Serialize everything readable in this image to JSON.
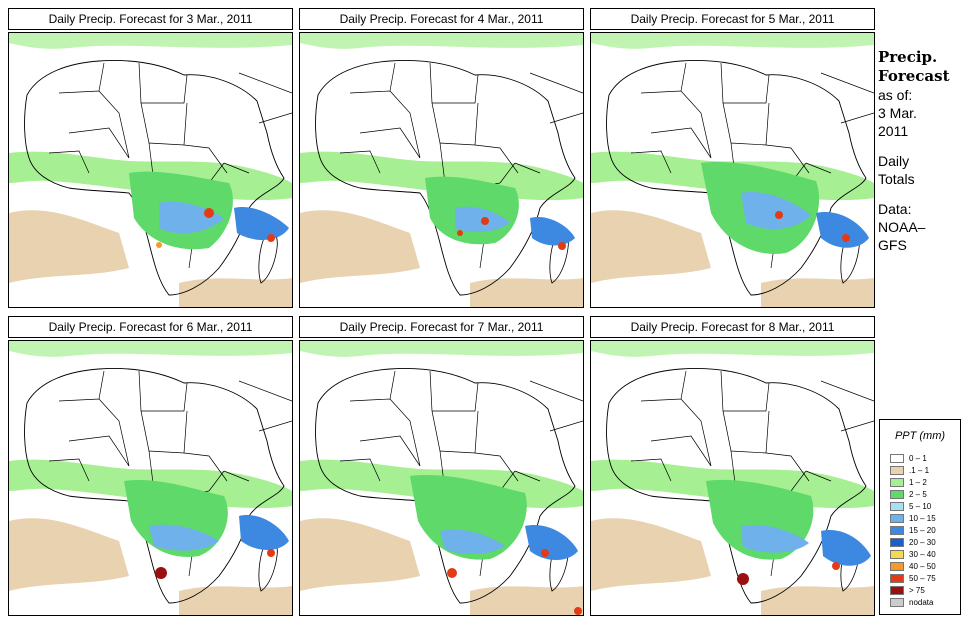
{
  "panels": [
    {
      "title": "Daily Precip. Forecast for  3 Mar., 2011"
    },
    {
      "title": "Daily Precip. Forecast for  4 Mar., 2011"
    },
    {
      "title": "Daily Precip. Forecast for  5 Mar., 2011"
    },
    {
      "title": "Daily Precip. Forecast for  6 Mar., 2011"
    },
    {
      "title": "Daily Precip. Forecast for  7 Mar., 2011"
    },
    {
      "title": "Daily Precip. Forecast for  8 Mar., 2011"
    }
  ],
  "side": {
    "title1": "Precip.",
    "title2": "Forecast",
    "asof": "as of:",
    "date1": "3 Mar.",
    "date2": "2011",
    "totals1": "Daily",
    "totals2": "Totals",
    "data1": "Data:",
    "data2": "NOAA–",
    "data3": "GFS"
  },
  "legend": {
    "title": "PPT (mm)",
    "items": [
      {
        "label": "0 – 1",
        "color": "#ffffff"
      },
      {
        "label": ".1 – 1",
        "color": "#e8d2b0"
      },
      {
        "label": "1 – 2",
        "color": "#a6ef92"
      },
      {
        "label": "2 – 5",
        "color": "#5ed96a"
      },
      {
        "label": "5 – 10",
        "color": "#a9e0f0"
      },
      {
        "label": "10 – 15",
        "color": "#6fb1ea"
      },
      {
        "label": "15 – 20",
        "color": "#3d88e0"
      },
      {
        "label": "20 – 30",
        "color": "#1a5fcc"
      },
      {
        "label": "30 – 40",
        "color": "#f5d94e"
      },
      {
        "label": "40 – 50",
        "color": "#f59a2a"
      },
      {
        "label": "50 – 75",
        "color": "#e23b16"
      },
      {
        "label": "> 75",
        "color": "#9a1010"
      },
      {
        "label": "nodata",
        "color": "#cccccc"
      }
    ]
  },
  "colors": {
    "tan": "#e8d2b0",
    "light_green": "#a6ef92",
    "green": "#5ed96a",
    "blue": "#3d88e0",
    "red": "#e23b16"
  }
}
